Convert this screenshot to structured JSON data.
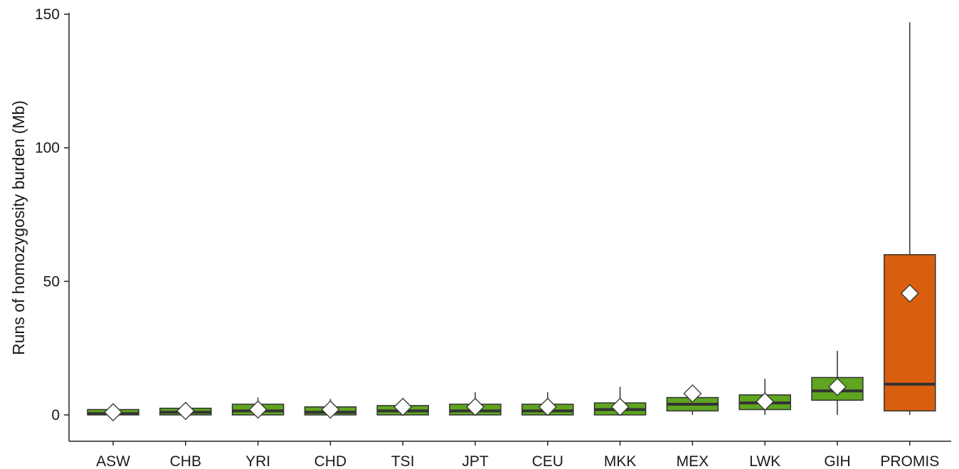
{
  "chart_data": {
    "type": "box",
    "title": "",
    "xlabel": "",
    "ylabel": "Runs of homozygosity burden (Mb)",
    "ylim": [
      -10,
      150
    ],
    "yticks": [
      0,
      50,
      100,
      150
    ],
    "grid": false,
    "legend": "none",
    "colors": {
      "default_fill": "#5fa51f",
      "highlight_fill": "#d95f0e",
      "stroke": "#333333",
      "mean_marker": "#ffffff"
    },
    "categories": [
      "ASW",
      "CHB",
      "YRI",
      "CHD",
      "TSI",
      "JPT",
      "CEU",
      "MKK",
      "MEX",
      "LWK",
      "GIH",
      "PROMIS"
    ],
    "boxes": [
      {
        "name": "ASW",
        "min": 0,
        "q1": 0,
        "median": 0.5,
        "q3": 2,
        "max": 2.5,
        "mean": 1.0,
        "highlight": false
      },
      {
        "name": "CHB",
        "min": 0,
        "q1": 0,
        "median": 1,
        "q3": 2.5,
        "max": 3,
        "mean": 1.5,
        "highlight": false
      },
      {
        "name": "YRI",
        "min": 0,
        "q1": 0,
        "median": 1.5,
        "q3": 4,
        "max": 6.5,
        "mean": 2.0,
        "highlight": false
      },
      {
        "name": "CHD",
        "min": 0,
        "q1": 0,
        "median": 1,
        "q3": 3,
        "max": 6,
        "mean": 2.0,
        "highlight": false
      },
      {
        "name": "TSI",
        "min": 0,
        "q1": 0,
        "median": 1.5,
        "q3": 3.5,
        "max": 5,
        "mean": 3.0,
        "highlight": false
      },
      {
        "name": "JPT",
        "min": 0,
        "q1": 0,
        "median": 1.5,
        "q3": 4,
        "max": 8.5,
        "mean": 3.0,
        "highlight": false
      },
      {
        "name": "CEU",
        "min": 0,
        "q1": 0,
        "median": 1.5,
        "q3": 4,
        "max": 8.5,
        "mean": 3.0,
        "highlight": false
      },
      {
        "name": "MKK",
        "min": 0,
        "q1": 0,
        "median": 2,
        "q3": 4.5,
        "max": 10.5,
        "mean": 3.0,
        "highlight": false
      },
      {
        "name": "MEX",
        "min": 0,
        "q1": 1.5,
        "median": 4,
        "q3": 6.5,
        "max": 9,
        "mean": 8.0,
        "highlight": false
      },
      {
        "name": "LWK",
        "min": 0,
        "q1": 2,
        "median": 4.5,
        "q3": 7.5,
        "max": 13.5,
        "mean": 5.0,
        "highlight": false
      },
      {
        "name": "GIH",
        "min": 0,
        "q1": 5.5,
        "median": 9,
        "q3": 14,
        "max": 24,
        "mean": 10.5,
        "highlight": false
      },
      {
        "name": "PROMIS",
        "min": 0,
        "q1": 1.5,
        "median": 11.5,
        "q3": 60,
        "max": 147,
        "mean": 45.5,
        "highlight": true
      }
    ]
  }
}
